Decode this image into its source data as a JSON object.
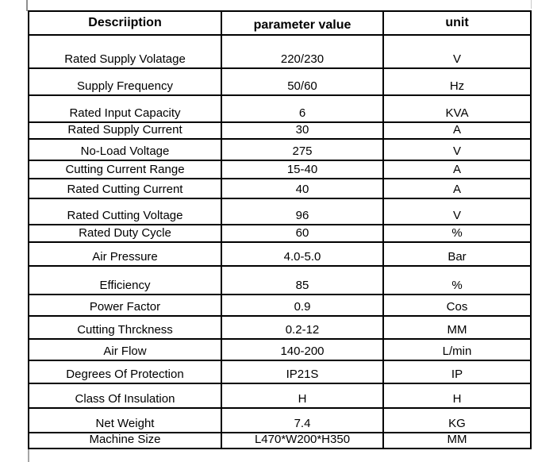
{
  "colors": {
    "background": "#ffffff",
    "table_border": "#000000",
    "text": "#000000",
    "gridline": "#a6a6a6"
  },
  "table": {
    "headers": [
      "Descriiption",
      "parameter value",
      "unit"
    ],
    "rows": [
      {
        "description": "Rated Supply Volatage",
        "value": "220/230",
        "unit": "V"
      },
      {
        "description": "Supply Frequency",
        "value": "50/60",
        "unit": "Hz"
      },
      {
        "description": "Rated Input Capacity",
        "value": "6",
        "unit": "KVA"
      },
      {
        "description": "Rated Supply Current",
        "value": "30",
        "unit": "A"
      },
      {
        "description": "No-Load Voltage",
        "value": "275",
        "unit": "V"
      },
      {
        "description": "Cutting Current Range",
        "value": "15-40",
        "unit": "A"
      },
      {
        "description": "Rated Cutting Current",
        "value": "40",
        "unit": "A"
      },
      {
        "description": "Rated Cutting Voltage",
        "value": "96",
        "unit": "V"
      },
      {
        "description": "Rated Duty Cycle",
        "value": "60",
        "unit": "%"
      },
      {
        "description": "Air Pressure",
        "value": "4.0-5.0",
        "unit": "Bar"
      },
      {
        "description": "Efficiency",
        "value": "85",
        "unit": "%"
      },
      {
        "description": "Power Factor",
        "value": "0.9",
        "unit": "Cos"
      },
      {
        "description": "Cutting Thrckness",
        "value": "0.2-12",
        "unit": "MM"
      },
      {
        "description": "Air Flow",
        "value": "140-200",
        "unit": "L/min"
      },
      {
        "description": "Degrees Of Protection",
        "value": "IP21S",
        "unit": "IP"
      },
      {
        "description": "Class Of Insulation",
        "value": "H",
        "unit": "H"
      },
      {
        "description": "Net Weight",
        "value": "7.4",
        "unit": "KG"
      },
      {
        "description": "Machine Size",
        "value": "L470*W200*H350",
        "unit": "MM"
      }
    ]
  }
}
